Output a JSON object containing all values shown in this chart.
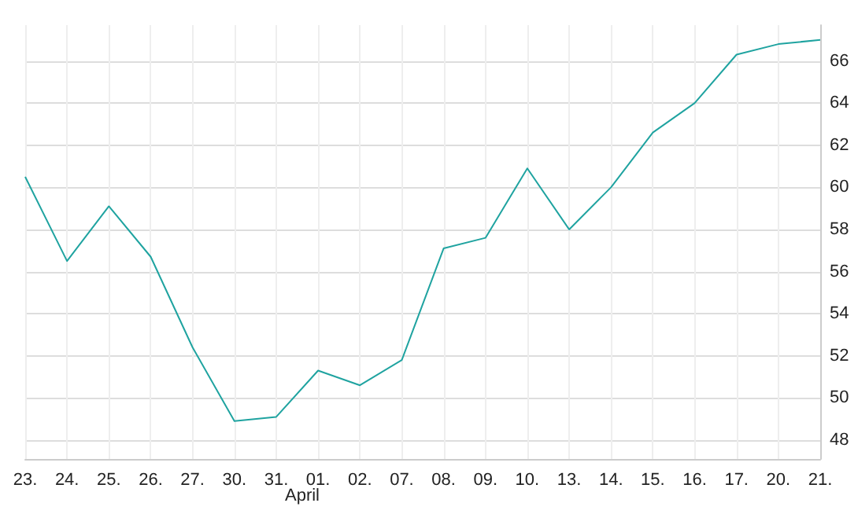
{
  "chart_data": {
    "type": "line",
    "categories": [
      "23.",
      "24.",
      "25.",
      "26.",
      "27.",
      "30.",
      "31.",
      "01.",
      "02.",
      "07.",
      "08.",
      "09.",
      "10.",
      "13.",
      "14.",
      "15.",
      "16.",
      "17.",
      "20.",
      "21."
    ],
    "series": [
      {
        "color": "#1fa3a0",
        "values": [
          60.5,
          56.5,
          59.1,
          56.7,
          52.4,
          48.9,
          49.1,
          51.3,
          50.6,
          51.8,
          57.1,
          57.6,
          60.9,
          58.0,
          60.0,
          62.6,
          64.0,
          66.3,
          66.8,
          67.0
        ]
      }
    ],
    "annotations": [
      "April"
    ],
    "ylim": [
      47.1,
      67.7
    ],
    "yticks": [
      48,
      50,
      52,
      54,
      56,
      58,
      60,
      62,
      64,
      66
    ],
    "grid": true,
    "marker": "none",
    "line_style": "solid"
  }
}
